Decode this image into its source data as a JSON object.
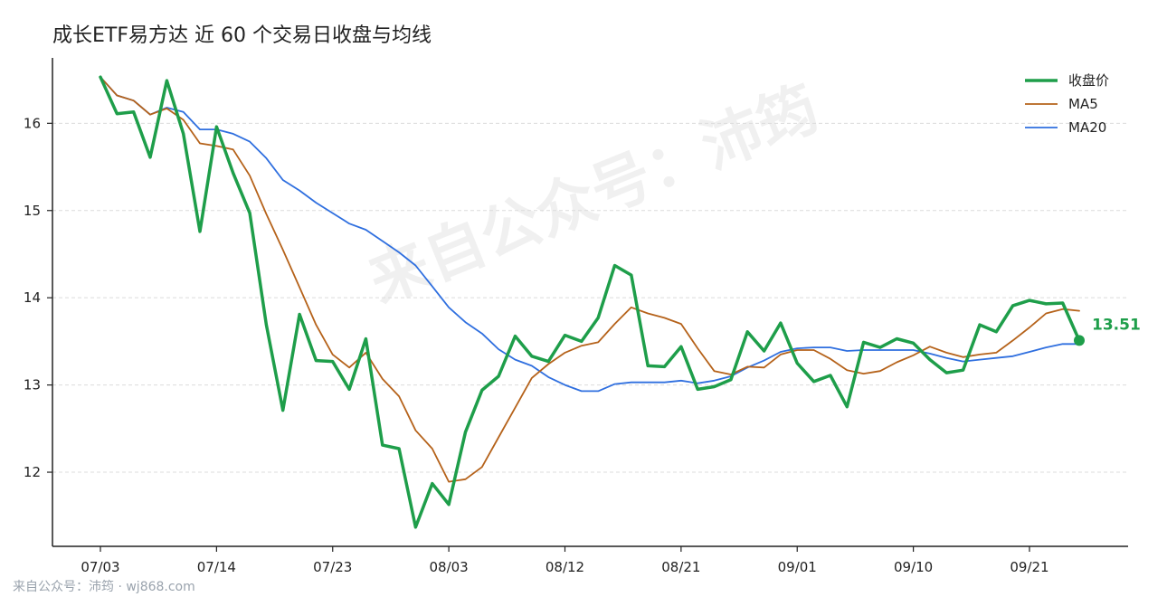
{
  "chart_data": {
    "type": "line",
    "title": "成长ETF易方达 近 60 个交易日收盘与均线",
    "xlabel": "",
    "ylabel": "",
    "ylim": [
      11.15,
      16.75
    ],
    "yticks": [
      12,
      13,
      14,
      15,
      16
    ],
    "xtick_labels": [
      "07/03",
      "07/14",
      "07/23",
      "08/03",
      "08/12",
      "08/21",
      "09/01",
      "09/10",
      "09/21"
    ],
    "xtick_index": [
      0,
      7,
      14,
      21,
      28,
      35,
      42,
      49,
      56
    ],
    "grid": "horizontal dashed",
    "legend_position": "top-right",
    "series": [
      {
        "name": "收盘价",
        "color": "#1e9e4a",
        "values": [
          16.53,
          16.11,
          16.13,
          15.61,
          16.49,
          15.88,
          14.76,
          15.96,
          15.43,
          14.97,
          13.69,
          12.71,
          13.81,
          13.28,
          13.27,
          12.95,
          13.53,
          12.31,
          12.27,
          11.37,
          11.87,
          11.63,
          12.46,
          12.94,
          13.1,
          13.56,
          13.33,
          13.27,
          13.57,
          13.5,
          13.77,
          14.37,
          14.26,
          13.22,
          13.21,
          13.44,
          12.95,
          12.98,
          13.06,
          13.61,
          13.39,
          13.71,
          13.25,
          13.04,
          13.11,
          12.75,
          13.49,
          13.43,
          13.53,
          13.48,
          13.29,
          13.14,
          13.17,
          13.69,
          13.61,
          13.91,
          13.97,
          13.93,
          13.94,
          13.51
        ]
      },
      {
        "name": "MA5",
        "color": "#b5621a",
        "values": [
          16.53,
          16.32,
          16.26,
          16.1,
          16.17,
          16.04,
          15.77,
          15.74,
          15.7,
          15.4,
          14.96,
          14.55,
          14.12,
          13.69,
          13.35,
          13.2,
          13.37,
          13.07,
          12.87,
          12.48,
          12.27,
          11.89,
          11.92,
          12.06,
          12.4,
          12.74,
          13.08,
          13.24,
          13.37,
          13.45,
          13.49,
          13.7,
          13.89,
          13.82,
          13.77,
          13.7,
          13.42,
          13.16,
          13.12,
          13.21,
          13.2,
          13.35,
          13.4,
          13.4,
          13.3,
          13.17,
          13.13,
          13.16,
          13.26,
          13.34,
          13.44,
          13.37,
          13.32,
          13.35,
          13.37,
          13.51,
          13.66,
          13.82,
          13.87,
          13.85
        ]
      },
      {
        "name": "MA20",
        "color": "#2f6fdf",
        "values": [
          16.53,
          16.32,
          16.26,
          16.1,
          16.18,
          16.13,
          15.93,
          15.93,
          15.88,
          15.79,
          15.6,
          15.35,
          15.23,
          15.09,
          14.97,
          14.85,
          14.78,
          14.65,
          14.52,
          14.37,
          14.13,
          13.89,
          13.72,
          13.59,
          13.41,
          13.29,
          13.22,
          13.09,
          13.0,
          12.93,
          12.93,
          13.01,
          13.03,
          13.03,
          13.03,
          13.05,
          13.02,
          13.05,
          13.1,
          13.2,
          13.28,
          13.38,
          13.42,
          13.43,
          13.43,
          13.39,
          13.4,
          13.4,
          13.4,
          13.4,
          13.36,
          13.31,
          13.27,
          13.29,
          13.31,
          13.33,
          13.38,
          13.43,
          13.47,
          13.47
        ]
      }
    ],
    "last_close_label": "13.51"
  },
  "watermark": "来自公众号：沛筠",
  "footer": "来自公众号：沛筠 · wj868.com"
}
